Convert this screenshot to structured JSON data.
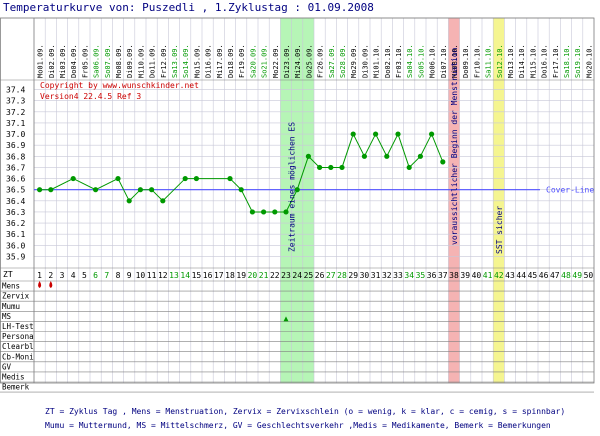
{
  "colors": {
    "title": "#000080",
    "grid": "#c8c8d8",
    "axis": "#808080",
    "coverline": "#5050ff",
    "curve": "#009900",
    "weekend": "#009900",
    "weekday": "#000000",
    "copyright": "#cc0000",
    "legend": "#000080",
    "band_green": "#b6f5b6",
    "band_red": "#f5b3b3",
    "band_yellow": "#f5f590",
    "menstruation": "#cc0000",
    "ms_marker": "#009900",
    "band_text": "#000080"
  },
  "chart_data": {
    "type": "line",
    "title": "Temperaturkurve von: Puszedli , 1.Zyklustag : 01.09.2008",
    "copyright": "Copyright by www.wunschkinder.net",
    "version": "Version4 22.4.5 Ref 3",
    "x": [
      1,
      2,
      3,
      4,
      5,
      6,
      7,
      8,
      9,
      10,
      11,
      12,
      13,
      14,
      15,
      16,
      17,
      18,
      19,
      20,
      21,
      22,
      23,
      24,
      25,
      26,
      27,
      28,
      29,
      30,
      31,
      32,
      33,
      34,
      35,
      36,
      37,
      38,
      39,
      40,
      41,
      42,
      43,
      44,
      45,
      46,
      47,
      48,
      49,
      50
    ],
    "dates": [
      "Mo01.09.",
      "Di02.09.",
      "Mi03.09.",
      "Do04.09.",
      "Fr05.09.",
      "Sa06.09.",
      "So07.09.",
      "Mo08.09.",
      "Di09.09.",
      "Mi10.09.",
      "Do11.09.",
      "Fr12.09.",
      "Sa13.09.",
      "So14.09.",
      "Mo15.09.",
      "Di16.09.",
      "Mi17.09.",
      "Do18.09.",
      "Fr19.09.",
      "Sa20.09.",
      "So21.09.",
      "Mo22.09.",
      "Di23.09.",
      "Mi24.09.",
      "Do25.09.",
      "Fr26.09.",
      "Sa27.09.",
      "So28.09.",
      "Mo29.09.",
      "Di30.09.",
      "Mi01.10.",
      "Do02.10.",
      "Fr03.10.",
      "Sa04.10.",
      "So05.10.",
      "Mo06.10.",
      "Di07.10.",
      "Mi08.10.",
      "Do09.10.",
      "Fr10.10.",
      "Sa11.10.",
      "So12.10.",
      "Mo13.10.",
      "Di14.10.",
      "Mi15.10.",
      "Do16.10.",
      "Fr17.10.",
      "Sa18.10.",
      "So19.10.",
      "Mo20.10."
    ],
    "weekend_days": [
      6,
      7,
      13,
      14,
      20,
      21,
      27,
      28,
      34,
      35,
      41,
      42,
      48,
      49
    ],
    "series": [
      {
        "x": [
          1,
          2,
          4,
          6,
          8,
          9,
          10,
          11,
          12,
          14,
          15,
          18,
          19,
          20,
          21,
          22,
          23,
          24,
          25,
          26,
          27,
          28,
          29,
          30,
          31,
          32,
          33,
          34,
          35,
          36,
          37
        ],
        "values": [
          36.5,
          36.5,
          36.6,
          36.5,
          36.6,
          36.4,
          36.5,
          36.5,
          36.4,
          36.6,
          36.6,
          36.6,
          36.5,
          36.3,
          36.3,
          36.3,
          36.3,
          36.5,
          36.8,
          36.7,
          36.7,
          36.7,
          37.0,
          36.8,
          37.0,
          36.8,
          37.0,
          36.7,
          36.8,
          37.0,
          36.75
        ]
      }
    ],
    "coverline": {
      "value": 36.5,
      "label": "Cover-Line"
    },
    "y_ticks": [
      "37.4",
      "37.3",
      "37.2",
      "37.1",
      "37.0",
      "36.9",
      "36.8",
      "36.7",
      "36.6",
      "36.5",
      "36.4",
      "36.3",
      "36.2",
      "36.1",
      "36.0",
      "35.9"
    ],
    "ylim": [
      35.85,
      37.45
    ],
    "bands": [
      {
        "from": 23,
        "to": 25,
        "color": "band_green",
        "label": "Zeitraum eines möglichen ES",
        "label_day": 23.5
      },
      {
        "from": 38,
        "to": 38,
        "color": "band_red",
        "label": "voraussichtlicher Beginn der Menstruation",
        "label_day": 38
      },
      {
        "from": 42,
        "to": 42,
        "color": "band_yellow",
        "label": "SST sicher",
        "label_day": 42
      }
    ],
    "grid": true
  },
  "rows": {
    "zt_label": "ZT",
    "labels": [
      "Mens",
      "Zervix",
      "Mumu",
      "MS",
      "LH-Test",
      "Persona",
      "Clearbl",
      "Cb-Moni",
      "GV",
      "Medis",
      "Bemerk"
    ],
    "mens_days": [
      1,
      2
    ],
    "ms_days": [
      23
    ]
  },
  "legend": {
    "line1": "ZT = Zyklus Tag , Mens = Menstruation, Zervix = Zervixschlein (o = wenig, k = klar, c = cemig, s = spinnbar)",
    "line2": "Mumu = Muttermund, MS = Mittelschmerz, GV = Geschlechtsverkehr ,Medis = Medikamente, Bemerk = Bemerkungen"
  }
}
